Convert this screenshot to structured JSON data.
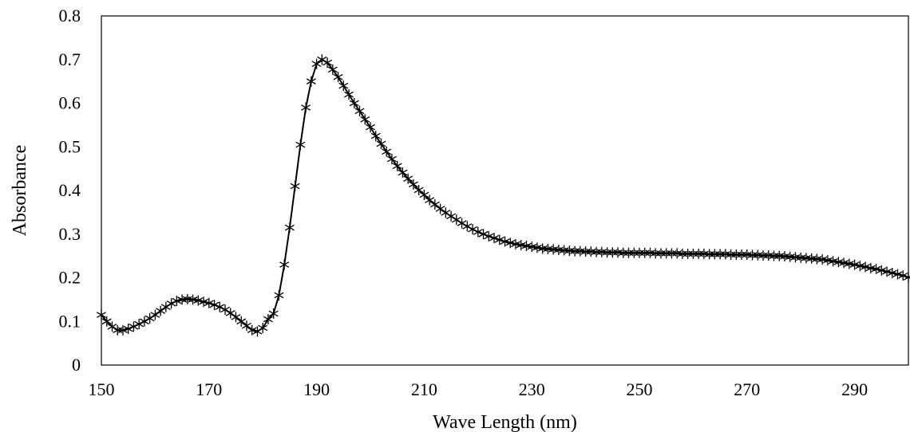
{
  "chart_data": {
    "type": "line",
    "title": "",
    "xlabel": "Wave Length (nm)",
    "ylabel": "Absorbance",
    "xlim": [
      150,
      300
    ],
    "ylim": [
      0,
      0.8
    ],
    "x_ticks": [
      150,
      170,
      190,
      210,
      230,
      250,
      270,
      290
    ],
    "y_ticks": [
      0,
      0.1,
      0.2,
      0.3,
      0.4,
      0.5,
      0.6,
      0.7,
      0.8
    ],
    "y_tick_labels": [
      "0",
      "0.1",
      "0.2",
      "0.3",
      "0.4",
      "0.5",
      "0.6",
      "0.7",
      "0.8"
    ],
    "grid": false,
    "legend": "none",
    "marker": "asterisk",
    "series": [
      {
        "x": [
          150,
          151,
          152,
          153,
          154,
          155,
          156,
          157,
          158,
          159,
          160,
          161,
          162,
          163,
          164,
          165,
          166,
          167,
          168,
          169,
          170,
          171,
          172,
          173,
          174,
          175,
          176,
          177,
          178,
          179,
          180,
          181,
          182,
          183,
          184,
          185,
          186,
          187,
          188,
          189,
          190,
          191,
          192,
          193,
          194,
          195,
          196,
          197,
          198,
          199,
          200,
          201,
          202,
          203,
          204,
          205,
          206,
          207,
          208,
          209,
          210,
          211,
          212,
          213,
          214,
          215,
          216,
          217,
          218,
          219,
          220,
          221,
          222,
          223,
          224,
          225,
          226,
          227,
          228,
          229,
          230,
          231,
          232,
          233,
          234,
          235,
          236,
          237,
          238,
          239,
          240,
          241,
          242,
          243,
          244,
          245,
          246,
          247,
          248,
          249,
          250,
          251,
          252,
          253,
          254,
          255,
          256,
          257,
          258,
          259,
          260,
          261,
          262,
          263,
          264,
          265,
          266,
          267,
          268,
          269,
          270,
          271,
          272,
          273,
          274,
          275,
          276,
          277,
          278,
          279,
          280,
          281,
          282,
          283,
          284,
          285,
          286,
          287,
          288,
          289,
          290,
          291,
          292,
          293,
          294,
          295,
          296,
          297,
          298,
          299,
          300
        ],
        "y": [
          0.115,
          0.1,
          0.088,
          0.08,
          0.08,
          0.083,
          0.088,
          0.094,
          0.1,
          0.107,
          0.115,
          0.124,
          0.133,
          0.141,
          0.147,
          0.15,
          0.151,
          0.15,
          0.148,
          0.145,
          0.142,
          0.138,
          0.133,
          0.127,
          0.119,
          0.11,
          0.1,
          0.09,
          0.08,
          0.077,
          0.085,
          0.105,
          0.118,
          0.16,
          0.23,
          0.315,
          0.41,
          0.505,
          0.59,
          0.65,
          0.69,
          0.7,
          0.693,
          0.677,
          0.66,
          0.64,
          0.62,
          0.6,
          0.582,
          0.563,
          0.545,
          0.525,
          0.507,
          0.489,
          0.472,
          0.456,
          0.441,
          0.427,
          0.414,
          0.401,
          0.39,
          0.378,
          0.368,
          0.358,
          0.349,
          0.341,
          0.333,
          0.325,
          0.318,
          0.311,
          0.305,
          0.3,
          0.295,
          0.291,
          0.287,
          0.283,
          0.28,
          0.277,
          0.275,
          0.273,
          0.271,
          0.269,
          0.267,
          0.266,
          0.265,
          0.264,
          0.263,
          0.262,
          0.261,
          0.261,
          0.26,
          0.26,
          0.259,
          0.259,
          0.258,
          0.258,
          0.258,
          0.257,
          0.257,
          0.257,
          0.257,
          0.257,
          0.257,
          0.256,
          0.256,
          0.256,
          0.256,
          0.256,
          0.255,
          0.255,
          0.255,
          0.255,
          0.255,
          0.254,
          0.254,
          0.254,
          0.254,
          0.253,
          0.253,
          0.253,
          0.253,
          0.252,
          0.252,
          0.251,
          0.251,
          0.25,
          0.25,
          0.249,
          0.248,
          0.247,
          0.246,
          0.245,
          0.244,
          0.243,
          0.242,
          0.24,
          0.238,
          0.236,
          0.234,
          0.232,
          0.23,
          0.227,
          0.225,
          0.222,
          0.22,
          0.217,
          0.214,
          0.211,
          0.208,
          0.205,
          0.201
        ]
      }
    ]
  }
}
